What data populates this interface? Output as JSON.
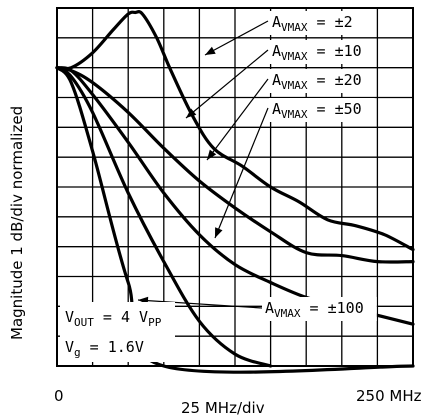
{
  "chart_data": {
    "type": "line",
    "xlabel": "25 MHz/div",
    "ylabel": "Magnitude  1 dB/div  normalized",
    "x_tick_labels": [
      "0",
      "250 MHz"
    ],
    "xlim": [
      0,
      250
    ],
    "ylim": [
      -10,
      2
    ],
    "grid": true,
    "series": [
      {
        "name": "A_VMAX = ±2",
        "x": [
          0,
          10,
          25,
          40,
          50,
          55,
          60,
          70,
          80,
          95,
          110,
          130,
          150,
          170,
          190,
          210,
          230,
          250
        ],
        "y": [
          0,
          0,
          0.5,
          1.3,
          1.8,
          1.85,
          1.8,
          1.0,
          -0.1,
          -1.6,
          -2.7,
          -3.3,
          -4.0,
          -4.5,
          -5.1,
          -5.3,
          -5.6,
          -6.1
        ]
      },
      {
        "name": "A_VMAX = ±10",
        "x": [
          0,
          10,
          25,
          50,
          75,
          100,
          125,
          150,
          175,
          200,
          225,
          250
        ],
        "y": [
          0,
          -0.1,
          -0.5,
          -1.5,
          -2.7,
          -3.8,
          -4.7,
          -5.5,
          -6.2,
          -6.3,
          -6.5,
          -6.5
        ]
      },
      {
        "name": "A_VMAX = ±20",
        "x": [
          0,
          10,
          25,
          50,
          75,
          100,
          125,
          150,
          175,
          200,
          225,
          250
        ],
        "y": [
          0,
          -0.1,
          -0.9,
          -2.5,
          -4.2,
          -5.6,
          -6.6,
          -7.2,
          -7.7,
          -8.0,
          -8.3,
          -8.6
        ]
      },
      {
        "name": "A_VMAX = ±50",
        "x": [
          0,
          10,
          25,
          50,
          75,
          100,
          125,
          150
        ],
        "y": [
          0,
          -0.3,
          -1.5,
          -4.2,
          -6.5,
          -8.5,
          -9.6,
          -10
        ]
      },
      {
        "name": "A_VMAX = ±100",
        "x": [
          0,
          10,
          25,
          50,
          75,
          250
        ],
        "y": [
          0,
          -0.5,
          -2.8,
          -7.2,
          -10,
          -10
        ]
      }
    ],
    "legend_labels": [
      {
        "series": 0,
        "sub": "VMAX",
        "value": "= ±2"
      },
      {
        "series": 1,
        "sub": "VMAX",
        "value": "= ±10"
      },
      {
        "series": 2,
        "sub": "VMAX",
        "value": "= ±20"
      },
      {
        "series": 3,
        "sub": "VMAX",
        "value": "= ±50"
      },
      {
        "series": 4,
        "sub": "VMAX",
        "value": "= ±100"
      }
    ],
    "annotation": {
      "vout_main": "V",
      "vout_sub": "OUT",
      "vout_eq": " = 4 V",
      "vout_unit_sub": "PP",
      "vg_main": "V",
      "vg_sub": "g",
      "vg_eq": " =  1.6V"
    }
  }
}
